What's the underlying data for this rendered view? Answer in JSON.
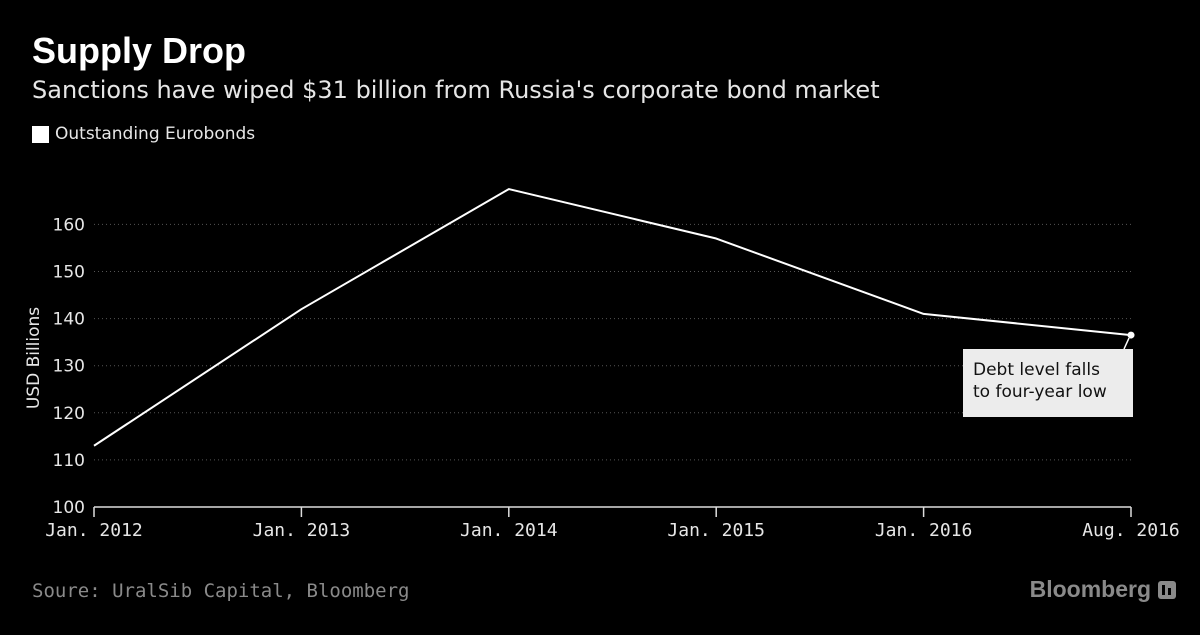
{
  "header": {
    "title": "Supply Drop",
    "subtitle": "Sanctions have wiped $31 billion from Russia's corporate bond market"
  },
  "legend": {
    "label": "Outstanding Eurobonds"
  },
  "footer": {
    "source": "Soure: UralSib Capital, Bloomberg",
    "brand": "Bloomberg"
  },
  "annotation": {
    "line1": "Debt level falls",
    "line2": "to four-year low"
  },
  "colors": {
    "background": "#000000",
    "line": "#ffffff",
    "grid": "#555555",
    "muted": "#8a8a8a"
  },
  "chart_data": {
    "type": "line",
    "title": "Supply Drop",
    "subtitle": "Sanctions have wiped $31 billion from Russia's corporate bond market",
    "ylabel": "USD Billions",
    "ylim": [
      100,
      165
    ],
    "yticks": [
      100,
      110,
      120,
      130,
      140,
      150,
      160
    ],
    "grid": true,
    "legend_position": "top-left",
    "x_tick_labels": [
      "Jan. 2012",
      "Jan. 2013",
      "Jan. 2014",
      "Jan. 2015",
      "Jan. 2016",
      "Aug. 2016"
    ],
    "series": [
      {
        "name": "Outstanding Eurobonds",
        "x": [
          "Jan. 2012",
          "Jan. 2013",
          "Jan. 2014",
          "Jan. 2015",
          "Jan. 2016",
          "Aug. 2016"
        ],
        "values": [
          113,
          142,
          167.5,
          157,
          141,
          136.5
        ]
      }
    ]
  }
}
